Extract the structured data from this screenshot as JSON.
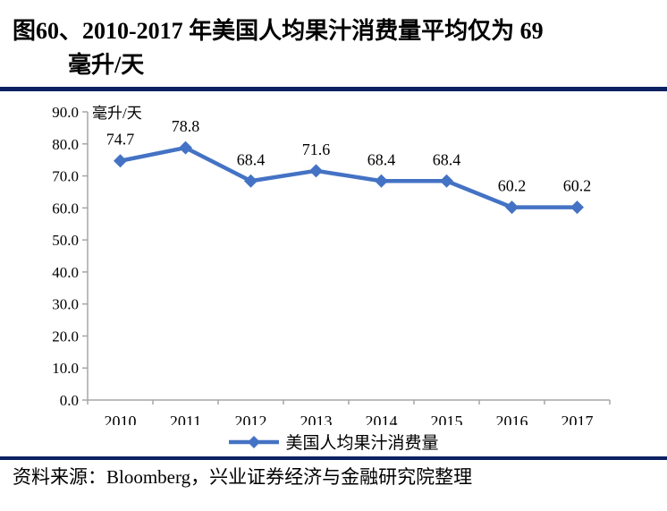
{
  "title": {
    "line1": "图60、2010-2017 年美国人均果汁消费量平均仅为 69",
    "line2": "毫升/天"
  },
  "chart_data": {
    "type": "line",
    "title": "",
    "unit_label": "毫升/天",
    "xlabel": "",
    "ylabel": "毫升/天",
    "categories": [
      "2010",
      "2011",
      "2012",
      "2013",
      "2014",
      "2015",
      "2016",
      "2017"
    ],
    "series": [
      {
        "name": "美国人均果汁消费量",
        "values": [
          74.7,
          78.8,
          68.4,
          71.6,
          68.4,
          68.4,
          60.2,
          60.2
        ],
        "color": "#4472C4",
        "marker": "diamond"
      }
    ],
    "ylim": [
      0,
      90
    ],
    "ytick_step": 10,
    "ytick_labels": [
      "0.0",
      "10.0",
      "20.0",
      "30.0",
      "40.0",
      "50.0",
      "60.0",
      "70.0",
      "80.0",
      "90.0"
    ],
    "grid": false,
    "data_labels": true,
    "legend_position": "bottom"
  },
  "source_note": "资料来源：Bloomberg，兴业证券经济与金融研究院整理",
  "colors": {
    "divider_bar": "#0B2161",
    "series_line": "#4472C4",
    "axis": "#A6A6A6",
    "text": "#000000"
  }
}
